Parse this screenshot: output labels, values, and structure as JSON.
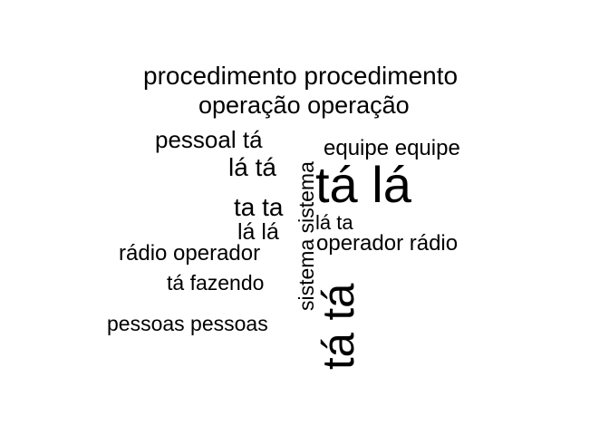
{
  "wordcloud": {
    "words": [
      {
        "text": "procedimento procedimento",
        "orientation": "horizontal"
      },
      {
        "text": "operação operação",
        "orientation": "horizontal"
      },
      {
        "text": "pessoal tá",
        "orientation": "horizontal"
      },
      {
        "text": "equipe equipe",
        "orientation": "horizontal"
      },
      {
        "text": "lá tá",
        "orientation": "horizontal"
      },
      {
        "text": "tá lá",
        "orientation": "horizontal"
      },
      {
        "text": "ta ta",
        "orientation": "horizontal"
      },
      {
        "text": "lá lá",
        "orientation": "horizontal"
      },
      {
        "text": "lá ta",
        "orientation": "horizontal"
      },
      {
        "text": "operador rádio",
        "orientation": "horizontal"
      },
      {
        "text": "rádio operador",
        "orientation": "horizontal"
      },
      {
        "text": "tá fazendo",
        "orientation": "horizontal"
      },
      {
        "text": "pessoas pessoas",
        "orientation": "horizontal"
      },
      {
        "text": "sistema sistema",
        "orientation": "vertical"
      },
      {
        "text": "tá tá",
        "orientation": "vertical"
      }
    ],
    "text_color": "#000000",
    "background_color": "#ffffff"
  }
}
